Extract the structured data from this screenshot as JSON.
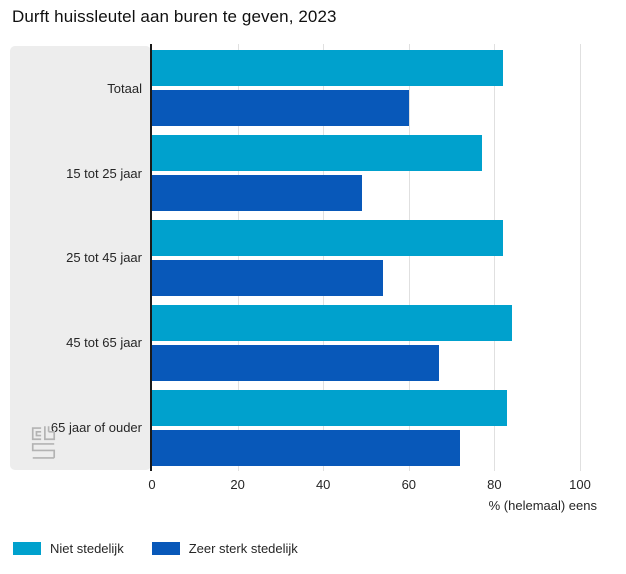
{
  "chart_data": {
    "type": "bar",
    "orientation": "horizontal",
    "title": "Durft huissleutel aan buren te geven, 2023",
    "categories": [
      "Totaal",
      "15 tot 25 jaar",
      "25 tot 45 jaar",
      "45 tot 65 jaar",
      "65 jaar of ouder"
    ],
    "series": [
      {
        "name": "Niet stedelijk",
        "color": "#00a1cd",
        "values": [
          82,
          77,
          82,
          84,
          83
        ]
      },
      {
        "name": "Zeer sterk stedelijk",
        "color": "#0858b9",
        "values": [
          60,
          49,
          54,
          67,
          72
        ]
      }
    ],
    "xlabel": "% (helemaal) eens",
    "xlim": [
      0,
      100
    ],
    "xticks": [
      0,
      20,
      40,
      60,
      80,
      100
    ],
    "grid": true,
    "legend_position": "bottom"
  },
  "branding": {
    "logo_name": "CBS"
  },
  "colors": {
    "panel_bg": "#ededed",
    "gridline": "#e0e0e0",
    "axis": "#1a1a1a",
    "logo_gray": "#b3b3b3"
  }
}
